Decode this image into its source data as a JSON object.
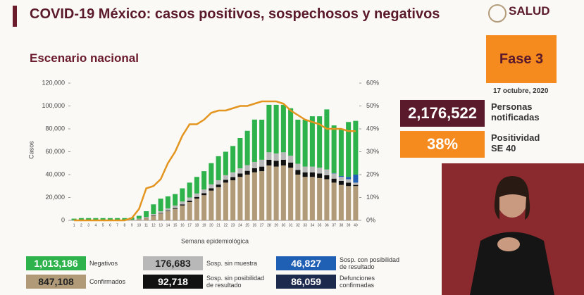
{
  "header": {
    "title": "COVID-19 México: casos positivos, sospechosos y negativos",
    "logo": "SALUD",
    "subtitle": "Escenario nacional"
  },
  "panel": {
    "phase": "Fase 3",
    "date": "17 octubre, 2020",
    "notified_value": "2,176,522",
    "notified_label": "Personas notificadas",
    "positivity_value": "38%",
    "positivity_label": "Positividad SE 40"
  },
  "chart_data": {
    "type": "bar",
    "stacked": true,
    "ylabel": "Casos",
    "xlabel": "Semana epidemiológica",
    "categories": [
      "1",
      "2",
      "3",
      "4",
      "5",
      "6",
      "7",
      "8",
      "9",
      "10",
      "11",
      "12",
      "13",
      "14",
      "15",
      "16",
      "17",
      "18",
      "19",
      "20",
      "21",
      "22",
      "23",
      "24",
      "25",
      "26",
      "27",
      "28",
      "29",
      "30",
      "31",
      "32",
      "33",
      "34",
      "35",
      "36",
      "37",
      "38",
      "39",
      "40"
    ],
    "ylim": [
      0,
      120000
    ],
    "yticks": [
      {
        "value": 0,
        "label": "0"
      },
      {
        "value": 20000,
        "label": "20,000"
      },
      {
        "value": 40000,
        "label": "40,000"
      },
      {
        "value": 60000,
        "label": "60,000"
      },
      {
        "value": 80000,
        "label": "80,000"
      },
      {
        "value": 100000,
        "label": "100,000"
      },
      {
        "value": 120000,
        "label": "120,000"
      }
    ],
    "y2lim": [
      0,
      60
    ],
    "y2ticks": [
      {
        "value": 0,
        "label": "0%"
      },
      {
        "value": 10,
        "label": "10%"
      },
      {
        "value": 20,
        "label": "20%"
      },
      {
        "value": 30,
        "label": "30%"
      },
      {
        "value": 40,
        "label": "40%"
      },
      {
        "value": 50,
        "label": "50%"
      },
      {
        "value": 60,
        "label": "60%"
      }
    ],
    "series": [
      {
        "name": "Confirmados",
        "total": "847,108",
        "color": "#b09a78",
        "values": [
          200,
          300,
          300,
          300,
          300,
          300,
          300,
          300,
          400,
          1000,
          2000,
          4000,
          6000,
          8000,
          10000,
          13000,
          16000,
          19000,
          22000,
          26000,
          29000,
          33000,
          35000,
          38000,
          40000,
          42000,
          43000,
          48000,
          47000,
          48000,
          46000,
          40000,
          38000,
          38000,
          37000,
          36000,
          33000,
          31000,
          30000,
          30000
        ]
      },
      {
        "name": "Sosp. sin posibilidad de resultado",
        "total": "92,718",
        "color": "#111111",
        "values": [
          0,
          0,
          0,
          0,
          0,
          0,
          0,
          0,
          0,
          100,
          200,
          300,
          400,
          500,
          700,
          1000,
          1200,
          1500,
          1800,
          2000,
          2300,
          2500,
          2800,
          3000,
          3300,
          3600,
          4000,
          5000,
          5000,
          5000,
          4500,
          4000,
          4000,
          4000,
          4000,
          3500,
          3500,
          3500,
          3000,
          1000
        ]
      },
      {
        "name": "Sosp. sin muestra",
        "total": "176,683",
        "color": "#b8b8b8",
        "values": [
          100,
          100,
          100,
          100,
          100,
          100,
          100,
          100,
          200,
          400,
          800,
          1200,
          1600,
          2000,
          2300,
          2500,
          2800,
          3000,
          3200,
          3500,
          3800,
          4000,
          4200,
          4500,
          5000,
          5500,
          6000,
          6500,
          6500,
          6500,
          6000,
          5500,
          5000,
          5000,
          5000,
          5000,
          4500,
          3500,
          3000,
          2000
        ]
      },
      {
        "name": "Sosp. con posibilidad de resultado",
        "total": "46,827",
        "color": "#1f5fb4",
        "values": [
          0,
          0,
          0,
          0,
          0,
          0,
          0,
          0,
          0,
          0,
          0,
          0,
          0,
          0,
          0,
          0,
          0,
          0,
          0,
          0,
          0,
          0,
          0,
          0,
          0,
          0,
          0,
          0,
          0,
          0,
          0,
          0,
          0,
          0,
          0,
          0,
          300,
          800,
          2000,
          7000
        ]
      },
      {
        "name": "Negativos",
        "total": "1,013,186",
        "color": "#2eb24b",
        "values": [
          1200,
          1600,
          1600,
          1600,
          1600,
          1600,
          1600,
          1600,
          1900,
          2500,
          5000,
          8500,
          11000,
          10500,
          10000,
          11500,
          13000,
          14500,
          16000,
          18500,
          21000,
          20500,
          23000,
          26500,
          30000,
          37000,
          35000,
          41500,
          42500,
          41500,
          41500,
          38500,
          41000,
          44000,
          45000,
          52500,
          41700,
          41200,
          48000,
          47000
        ]
      },
      {
        "type": "line",
        "axis": "y2",
        "color": "#e3951f",
        "values": [
          0,
          0,
          0,
          0,
          0,
          0,
          0,
          0,
          1,
          5,
          14,
          15,
          18,
          25,
          30,
          37,
          42,
          42,
          44,
          47,
          48,
          48,
          49,
          50,
          50,
          51,
          52,
          52,
          52,
          51,
          48,
          46,
          44,
          43,
          42,
          40,
          40,
          40,
          39,
          39
        ]
      }
    ],
    "extra_legend": {
      "name": "Defunciones confirmadas",
      "total": "86,059",
      "color": "#1c2a4d"
    }
  }
}
